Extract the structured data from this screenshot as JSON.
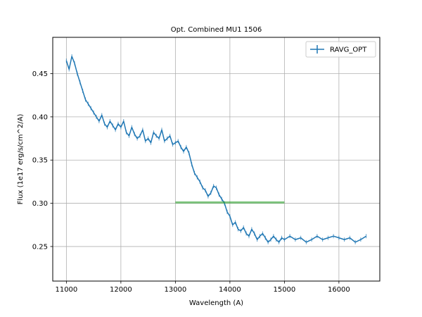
{
  "chart_data": {
    "type": "line",
    "title": "Opt. Combined MU1 1506",
    "xlabel": "Wavelength (A)",
    "ylabel": "Flux (1e17 erg/s/cm^2/A)",
    "xlim": [
      10750,
      16750
    ],
    "ylim": [
      0.21,
      0.492
    ],
    "xticks": [
      11000,
      12000,
      13000,
      14000,
      15000,
      16000
    ],
    "yticks": [
      0.25,
      0.3,
      0.35,
      0.4,
      0.45
    ],
    "ytick_labels": [
      "0.25",
      "0.30",
      "0.35",
      "0.40",
      "0.45"
    ],
    "grid": true,
    "legend_position": "upper right",
    "series": [
      {
        "name": "RAVG_OPT",
        "color": "#1f77b4",
        "style": "line with error bars",
        "x": [
          11000,
          11050,
          11100,
          11150,
          11200,
          11250,
          11300,
          11350,
          11400,
          11450,
          11500,
          11550,
          11600,
          11650,
          11700,
          11750,
          11800,
          11850,
          11900,
          11950,
          12000,
          12050,
          12100,
          12150,
          12200,
          12250,
          12300,
          12350,
          12400,
          12450,
          12500,
          12550,
          12600,
          12650,
          12700,
          12750,
          12800,
          12850,
          12900,
          12950,
          13000,
          13050,
          13100,
          13150,
          13200,
          13250,
          13300,
          13350,
          13400,
          13450,
          13500,
          13550,
          13600,
          13650,
          13700,
          13750,
          13800,
          13850,
          13900,
          13950,
          14000,
          14050,
          14100,
          14150,
          14200,
          14250,
          14300,
          14350,
          14400,
          14450,
          14500,
          14550,
          14600,
          14650,
          14700,
          14750,
          14800,
          14850,
          14900,
          14950,
          15000,
          15100,
          15200,
          15300,
          15400,
          15500,
          15600,
          15700,
          15800,
          15900,
          16000,
          16100,
          16200,
          16300,
          16400,
          16500
        ],
        "y": [
          0.465,
          0.455,
          0.47,
          0.462,
          0.45,
          0.44,
          0.43,
          0.42,
          0.415,
          0.41,
          0.405,
          0.4,
          0.395,
          0.402,
          0.392,
          0.388,
          0.395,
          0.39,
          0.385,
          0.392,
          0.388,
          0.395,
          0.382,
          0.378,
          0.388,
          0.38,
          0.375,
          0.378,
          0.385,
          0.372,
          0.375,
          0.37,
          0.382,
          0.378,
          0.375,
          0.385,
          0.372,
          0.375,
          0.378,
          0.368,
          0.37,
          0.372,
          0.365,
          0.36,
          0.365,
          0.358,
          0.345,
          0.335,
          0.33,
          0.325,
          0.318,
          0.315,
          0.308,
          0.312,
          0.32,
          0.318,
          0.31,
          0.305,
          0.3,
          0.29,
          0.285,
          0.275,
          0.278,
          0.27,
          0.268,
          0.272,
          0.265,
          0.262,
          0.27,
          0.265,
          0.258,
          0.262,
          0.265,
          0.26,
          0.255,
          0.258,
          0.262,
          0.258,
          0.255,
          0.26,
          0.258,
          0.262,
          0.258,
          0.26,
          0.255,
          0.258,
          0.262,
          0.258,
          0.26,
          0.262,
          0.26,
          0.258,
          0.26,
          0.255,
          0.258,
          0.262
        ]
      },
      {
        "name": "",
        "color": "#2ca02c",
        "style": "thick semi-transparent segment",
        "x": [
          13000,
          15000
        ],
        "y": [
          0.301,
          0.301
        ]
      }
    ]
  }
}
